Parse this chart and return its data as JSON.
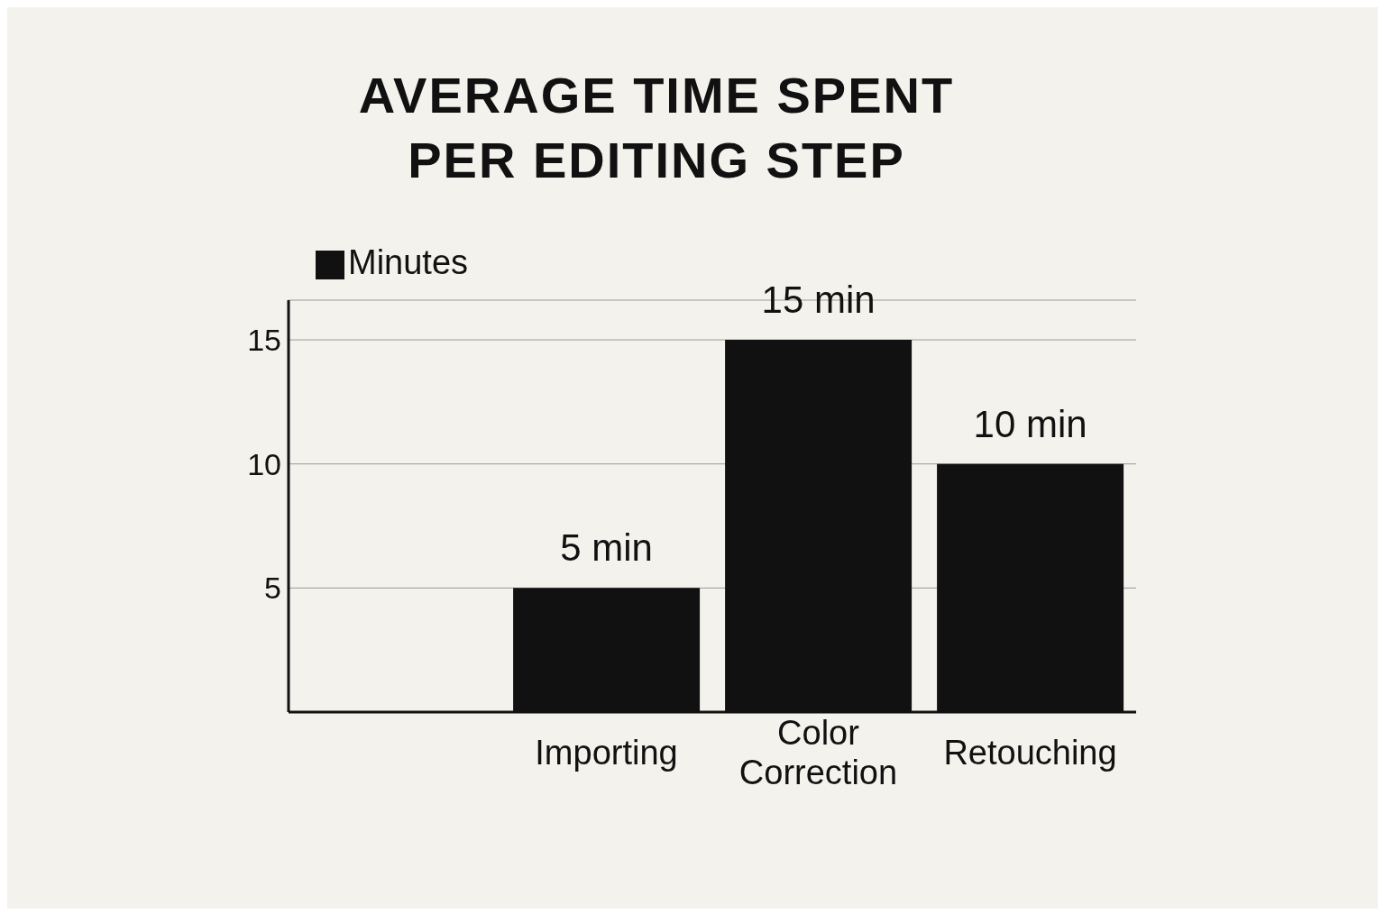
{
  "chart_data": {
    "type": "bar",
    "title": "AVERAGE TIME SPENT\nPER EDITING STEP",
    "categories": [
      null,
      "Importing",
      "Color Correction",
      "Retouching"
    ],
    "series": [
      {
        "name": "Minutes",
        "color": "#111111",
        "values": [
          null,
          5,
          15,
          10
        ]
      }
    ],
    "value_labels": [
      null,
      "5 min",
      "15 min",
      "10 min"
    ],
    "ylim": [
      0,
      16.6
    ],
    "yticks": [
      5,
      10,
      15
    ],
    "grid": "y",
    "legend": "top left"
  }
}
